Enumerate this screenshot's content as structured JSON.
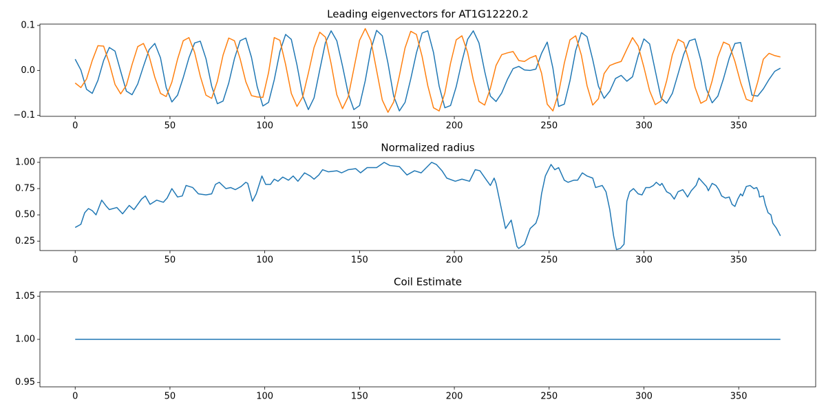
{
  "chart_data": [
    {
      "type": "line",
      "title": "Leading eigenvectors for AT1G12220.2",
      "x": [
        0,
        3,
        6,
        9,
        12,
        15,
        18,
        21,
        24,
        27,
        30,
        33,
        36,
        39,
        42,
        45,
        48,
        51,
        54,
        57,
        60,
        63,
        66,
        69,
        72,
        75,
        78,
        81,
        84,
        87,
        90,
        93,
        96,
        99,
        102,
        105,
        108,
        111,
        114,
        117,
        120,
        123,
        126,
        129,
        132,
        135,
        138,
        141,
        144,
        147,
        150,
        153,
        156,
        159,
        162,
        165,
        168,
        171,
        174,
        177,
        180,
        183,
        186,
        189,
        192,
        195,
        198,
        201,
        204,
        207,
        210,
        213,
        216,
        219,
        222,
        225,
        228,
        231,
        234,
        237,
        240,
        243,
        246,
        249,
        252,
        255,
        258,
        261,
        264,
        267,
        270,
        273,
        276,
        279,
        282,
        285,
        288,
        291,
        294,
        297,
        300,
        303,
        306,
        309,
        312,
        315,
        318,
        321,
        324,
        327,
        330,
        333,
        336,
        339,
        342,
        345,
        348,
        351,
        354,
        357,
        360,
        363,
        366,
        369,
        372
      ],
      "series": [
        {
          "color": "#1f77b4",
          "values": [
            0.025,
            0.001,
            -0.042,
            -0.051,
            -0.022,
            0.022,
            0.051,
            0.043,
            -0.002,
            -0.046,
            -0.054,
            -0.03,
            0.009,
            0.046,
            0.06,
            0.028,
            -0.038,
            -0.07,
            -0.055,
            -0.016,
            0.028,
            0.061,
            0.065,
            0.026,
            -0.035,
            -0.074,
            -0.068,
            -0.028,
            0.026,
            0.066,
            0.072,
            0.029,
            -0.036,
            -0.079,
            -0.071,
            -0.021,
            0.042,
            0.08,
            0.069,
            0.012,
            -0.056,
            -0.087,
            -0.061,
            0.001,
            0.062,
            0.088,
            0.066,
            0.01,
            -0.051,
            -0.087,
            -0.078,
            -0.023,
            0.047,
            0.089,
            0.077,
            0.016,
            -0.057,
            -0.09,
            -0.071,
            -0.019,
            0.039,
            0.083,
            0.088,
            0.04,
            -0.035,
            -0.083,
            -0.078,
            -0.036,
            0.02,
            0.069,
            0.088,
            0.061,
            -0.002,
            -0.057,
            -0.069,
            -0.05,
            -0.02,
            0.004,
            0.009,
            0.001,
            0,
            0.003,
            0.038,
            0.063,
            0.005,
            -0.08,
            -0.075,
            -0.023,
            0.044,
            0.084,
            0.075,
            0.024,
            -0.035,
            -0.062,
            -0.046,
            -0.018,
            -0.011,
            -0.024,
            -0.014,
            0.033,
            0.07,
            0.059,
            -0.001,
            -0.061,
            -0.073,
            -0.051,
            -0.008,
            0.036,
            0.066,
            0.07,
            0.023,
            -0.042,
            -0.072,
            -0.057,
            -0.018,
            0.027,
            0.06,
            0.062,
            0.004,
            -0.055,
            -0.057,
            -0.041,
            -0.02,
            -0.002,
            0.005
          ]
        },
        {
          "color": "#ff7f0e",
          "values": [
            -0.028,
            -0.038,
            -0.019,
            0.022,
            0.055,
            0.054,
            0.016,
            -0.031,
            -0.052,
            -0.033,
            0.013,
            0.053,
            0.06,
            0.032,
            -0.015,
            -0.051,
            -0.058,
            -0.026,
            0.025,
            0.066,
            0.073,
            0.04,
            -0.013,
            -0.055,
            -0.062,
            -0.024,
            0.034,
            0.072,
            0.066,
            0.026,
            -0.025,
            -0.056,
            -0.059,
            -0.06,
            -0.005,
            0.073,
            0.067,
            0.013,
            -0.051,
            -0.08,
            -0.059,
            -0.006,
            0.051,
            0.085,
            0.074,
            0.015,
            -0.054,
            -0.085,
            -0.059,
            0.004,
            0.067,
            0.093,
            0.066,
            0,
            -0.066,
            -0.093,
            -0.07,
            -0.012,
            0.05,
            0.087,
            0.08,
            0.031,
            -0.034,
            -0.083,
            -0.09,
            -0.05,
            0.016,
            0.068,
            0.077,
            0.04,
            -0.021,
            -0.069,
            -0.077,
            -0.04,
            0.011,
            0.035,
            0.039,
            0.042,
            0.022,
            0.02,
            0.028,
            0.033,
            -0.006,
            -0.075,
            -0.09,
            -0.05,
            0.016,
            0.068,
            0.077,
            0.034,
            -0.034,
            -0.077,
            -0.063,
            -0.007,
            0.011,
            0.016,
            0.02,
            0.047,
            0.073,
            0.054,
            0.007,
            -0.045,
            -0.076,
            -0.068,
            -0.023,
            0.035,
            0.069,
            0.062,
            0.018,
            -0.038,
            -0.073,
            -0.066,
            -0.023,
            0.03,
            0.063,
            0.057,
            0.02,
            -0.027,
            -0.064,
            -0.069,
            -0.026,
            0.025,
            0.038,
            0.033,
            0.03
          ]
        }
      ],
      "xlim": [
        -18.6,
        390.6
      ],
      "xticks": [
        0,
        50,
        100,
        150,
        200,
        250,
        300,
        350
      ],
      "ylim": [
        -0.102,
        0.103
      ],
      "yticks": [
        {
          "value": -0.1,
          "label": "−0.1"
        },
        {
          "value": 0,
          "label": "0.0"
        },
        0.1
      ]
    },
    {
      "type": "line",
      "title": "Normalized radius",
      "x": [
        0,
        3,
        5,
        7,
        9,
        11,
        14,
        16.5,
        18,
        22,
        25,
        28.5,
        31,
        35,
        37,
        39.5,
        43,
        46.5,
        48.5,
        51,
        54,
        56.5,
        58.5,
        62,
        65,
        69,
        72,
        74,
        76,
        79.5,
        82,
        84.5,
        87.5,
        90,
        91,
        93.5,
        95.5,
        98.5,
        100.5,
        103,
        105,
        107,
        109.5,
        112.5,
        115,
        117.5,
        121,
        124,
        126,
        128.5,
        130.5,
        133.5,
        138,
        140.5,
        144,
        148,
        150.5,
        154,
        159,
        163,
        166,
        171,
        175,
        179,
        182.5,
        188,
        190.5,
        193.5,
        196,
        200.5,
        204,
        208,
        211,
        213.5,
        217,
        219,
        221,
        222,
        227,
        230,
        233,
        234,
        237,
        240,
        243,
        244.5,
        246,
        248,
        251,
        253,
        255,
        258,
        260,
        263,
        265,
        267.5,
        270,
        273,
        274.5,
        278,
        280,
        282,
        284,
        285.5,
        287.5,
        289.5,
        291,
        292.5,
        294.5,
        297,
        299,
        301,
        303,
        305,
        306.5,
        308.5,
        309.5,
        312,
        314,
        316,
        318,
        320.5,
        322,
        323,
        325,
        327.5,
        329,
        331,
        333,
        334,
        336,
        338,
        339.5,
        341,
        343,
        345,
        346.5,
        348,
        349.5,
        351,
        352,
        354,
        356,
        358,
        359.5,
        360.5,
        361,
        363,
        364,
        365.5,
        367,
        368,
        370,
        372
      ],
      "series": [
        {
          "color": "#1f77b4",
          "values": [
            0.38,
            0.41,
            0.52,
            0.56,
            0.54,
            0.5,
            0.64,
            0.58,
            0.55,
            0.57,
            0.51,
            0.59,
            0.55,
            0.65,
            0.68,
            0.6,
            0.64,
            0.62,
            0.66,
            0.75,
            0.67,
            0.68,
            0.78,
            0.76,
            0.7,
            0.69,
            0.7,
            0.79,
            0.81,
            0.75,
            0.76,
            0.74,
            0.77,
            0.81,
            0.8,
            0.63,
            0.7,
            0.87,
            0.79,
            0.79,
            0.84,
            0.82,
            0.86,
            0.83,
            0.87,
            0.82,
            0.9,
            0.87,
            0.84,
            0.88,
            0.93,
            0.91,
            0.92,
            0.9,
            0.93,
            0.94,
            0.9,
            0.95,
            0.95,
            1.0,
            0.97,
            0.96,
            0.88,
            0.92,
            0.9,
            1.0,
            0.98,
            0.92,
            0.85,
            0.82,
            0.84,
            0.82,
            0.93,
            0.92,
            0.83,
            0.78,
            0.85,
            0.8,
            0.37,
            0.45,
            0.2,
            0.18,
            0.22,
            0.37,
            0.42,
            0.5,
            0.7,
            0.87,
            0.98,
            0.93,
            0.95,
            0.83,
            0.81,
            0.83,
            0.83,
            0.9,
            0.87,
            0.85,
            0.76,
            0.78,
            0.72,
            0.55,
            0.3,
            0.17,
            0.18,
            0.22,
            0.63,
            0.72,
            0.75,
            0.7,
            0.69,
            0.76,
            0.76,
            0.78,
            0.81,
            0.78,
            0.8,
            0.72,
            0.7,
            0.65,
            0.72,
            0.74,
            0.7,
            0.67,
            0.73,
            0.78,
            0.85,
            0.81,
            0.77,
            0.73,
            0.8,
            0.78,
            0.74,
            0.68,
            0.66,
            0.67,
            0.6,
            0.58,
            0.65,
            0.7,
            0.68,
            0.77,
            0.78,
            0.75,
            0.76,
            0.72,
            0.67,
            0.68,
            0.6,
            0.52,
            0.5,
            0.42,
            0.37,
            0.3
          ]
        }
      ],
      "xlim": [
        -18.6,
        390.6
      ],
      "xticks": [
        0,
        50,
        100,
        150,
        200,
        250,
        300,
        350
      ],
      "ylim": [
        0.16,
        1.045
      ],
      "yticks": [
        {
          "value": 0.25,
          "label": "0.25"
        },
        {
          "value": 0.5,
          "label": "0.50"
        },
        {
          "value": 0.75,
          "label": "0.75"
        },
        {
          "value": 1,
          "label": "1.00"
        }
      ]
    },
    {
      "type": "line",
      "title": "Coil Estimate",
      "x": [
        0,
        372
      ],
      "series": [
        {
          "color": "#1f77b4",
          "values": [
            1,
            1
          ]
        }
      ],
      "xlim": [
        -18.6,
        390.6
      ],
      "xticks": [
        0,
        50,
        100,
        150,
        200,
        250,
        300,
        350
      ],
      "ylim": [
        0.945,
        1.055
      ],
      "yticks": [
        {
          "value": 0.95,
          "label": "0.95"
        },
        {
          "value": 1,
          "label": "1.00"
        },
        {
          "value": 1.05,
          "label": "1.05"
        }
      ]
    }
  ]
}
